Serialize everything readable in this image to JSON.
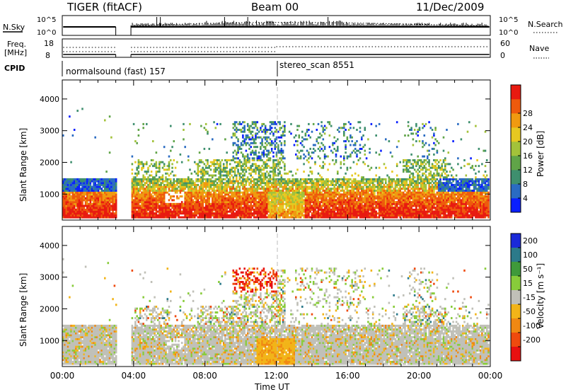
{
  "header": {
    "title": "TIGER (fitACF)",
    "beam": "Beam 00",
    "date": "11/Dec/2009"
  },
  "top_panels": {
    "nsky_label": "N.Sky",
    "nsky_ticks": [
      "10^5",
      "10^0"
    ],
    "nsearch_label": "N.Search",
    "nsearch_ticks": [
      "10^5",
      "10^0"
    ],
    "freq_label": "Freq.",
    "freq_unit": "[MHz]",
    "freq_ticks": [
      "18",
      "8"
    ],
    "nave_label": "Nave",
    "nave_ticks": [
      "60",
      "0"
    ],
    "cpid_label": "CPID",
    "cpid_modes": [
      {
        "label": "normalsound (fast) 157",
        "start_hour": 0,
        "end_hour": 12
      },
      {
        "label": "stereo_scan 8551",
        "start_hour": 12,
        "end_hour": 24
      }
    ],
    "data_gap_hours": [
      3.0,
      3.85
    ]
  },
  "chart_data": [
    {
      "type": "heatmap",
      "name": "power",
      "ylabel": "Slant Range [km]",
      "xlabel": "",
      "y_ticks": [
        1000,
        2000,
        3000,
        4000
      ],
      "ylim": [
        180,
        4600
      ],
      "xlim": [
        0,
        24
      ],
      "colorbar_label": "Power [dB]",
      "colorbar_ticks": [
        "4",
        "8",
        "12",
        "16",
        "20",
        "24",
        "28"
      ],
      "colorbar_colors": [
        "#0a1fff",
        "#2a6bc2",
        "#3e8f6e",
        "#60a448",
        "#a3c23a",
        "#e6c820",
        "#f09a10",
        "#ee5a0c",
        "#e81a10"
      ]
    },
    {
      "type": "heatmap",
      "name": "velocity",
      "ylabel": "Slant Range [km]",
      "xlabel": "Time UT",
      "y_ticks": [
        1000,
        2000,
        3000,
        4000
      ],
      "ylim": [
        180,
        4600
      ],
      "xlim": [
        0,
        24
      ],
      "x_ticks": [
        "00:00",
        "04:00",
        "08:00",
        "12:00",
        "16:00",
        "20:00",
        "00:00"
      ],
      "colorbar_label": "Velocity [m s⁻¹]",
      "colorbar_ticks": [
        "200",
        "100",
        "50",
        "15",
        "-15",
        "-50",
        "-100",
        "-200"
      ],
      "colorbar_colors": [
        "#1a2ad8",
        "#2c7a8a",
        "#3f9a3a",
        "#88cc3a",
        "#c0c0b8",
        "#f2b418",
        "#f08812",
        "#ef4a0e",
        "#e81010"
      ]
    }
  ]
}
